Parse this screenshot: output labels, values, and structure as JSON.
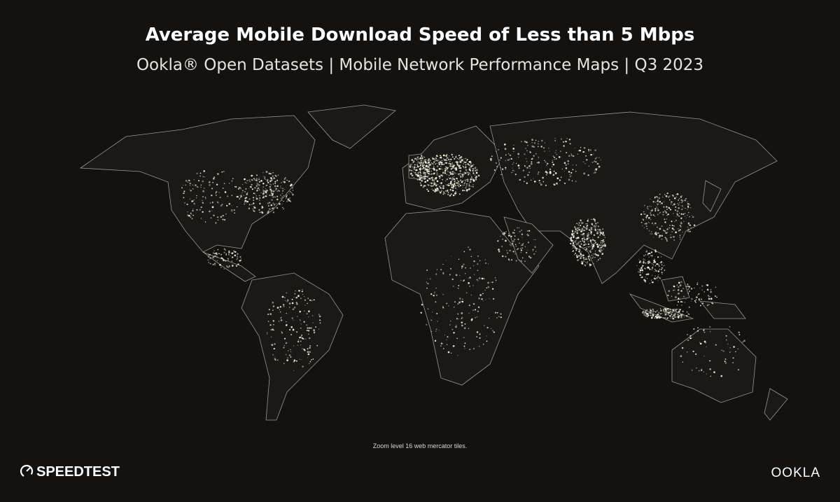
{
  "header": {
    "title": "Average Mobile Download Speed of Less than 5 Mbps",
    "subtitle": "Ookla® Open Datasets | Mobile Network Performance Maps | Q3 2023"
  },
  "map": {
    "note": "Zoom level 16 web mercator tiles."
  },
  "footer": {
    "left_logo": "SPEEDTEST",
    "right_logo": "OOKLA"
  }
}
